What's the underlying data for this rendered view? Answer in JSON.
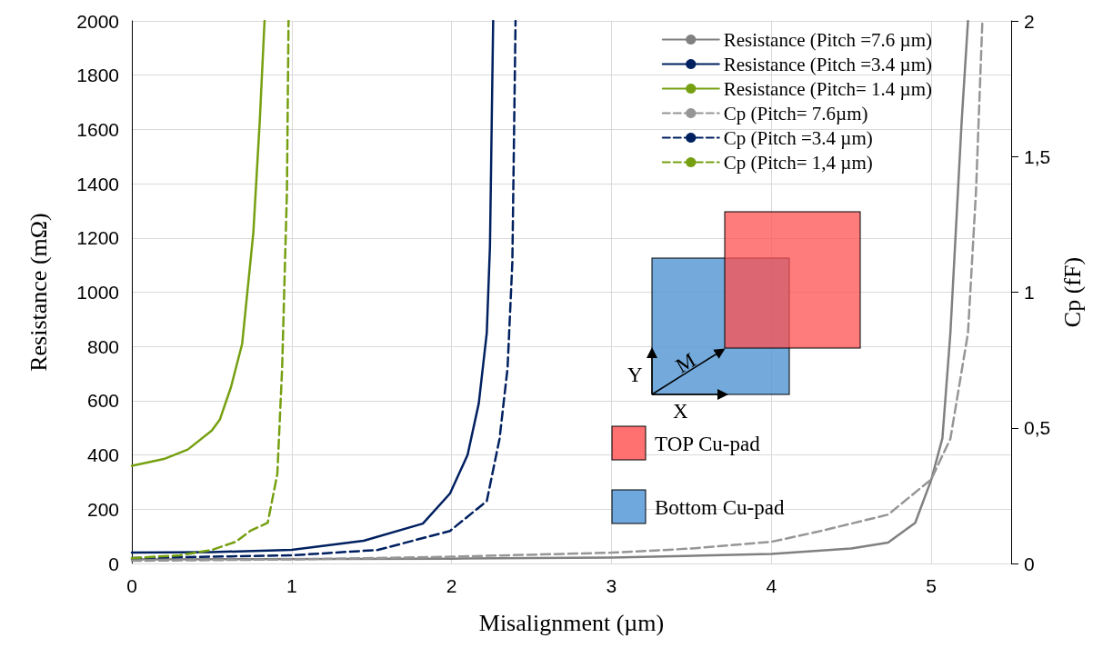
{
  "chart_data": {
    "type": "line",
    "xlabel": "Misalignment (µm)",
    "ylabel": "Resistance (mΩ)",
    "y2label": "Cp (fF)",
    "xlim": [
      0,
      5.5
    ],
    "xticks": [
      0,
      1,
      2,
      3,
      4,
      5
    ],
    "ylim": [
      0,
      2000
    ],
    "yticks": [
      0,
      200,
      400,
      600,
      800,
      1000,
      1200,
      1400,
      1600,
      1800,
      2000
    ],
    "y2lim": [
      0,
      2
    ],
    "y2ticks": [
      0,
      {
        "value": 0.5,
        "label": "0,5"
      },
      1,
      {
        "value": 1.5,
        "label": "1,5"
      },
      2
    ],
    "grid": true,
    "legend": "top right",
    "marker": "none",
    "annotations": [
      "X",
      "Y",
      "M",
      "TOP Cu-pad",
      "Bottom Cu-pad"
    ],
    "series": [
      {
        "name": "Resistance (Pitch =7.6 µm)",
        "color": "#808080",
        "line_style": "solid",
        "x": [
          0,
          2,
          3,
          4,
          4.5,
          4.73,
          4.9,
          5,
          5.07,
          5.12,
          5.19,
          5.23
        ],
        "values": [
          15,
          18,
          22,
          35,
          55,
          77,
          150,
          308,
          462,
          850,
          1625,
          2000
        ]
      },
      {
        "name": "Resistance (Pitch =3.4 µm)",
        "color": "#002060",
        "line_style": "solid",
        "x": [
          0,
          0.5,
          1,
          1.45,
          1.82,
          1.99,
          2.1,
          2.17,
          2.22,
          2.24,
          2.26
        ],
        "values": [
          40,
          42,
          50,
          84,
          147,
          258,
          400,
          590,
          850,
          1170,
          2000
        ]
      },
      {
        "name": "Resistance (Pitch= 1.4 µm)",
        "color": "#76a011",
        "line_style": "solid",
        "x": [
          0,
          0.2,
          0.35,
          0.5,
          0.55,
          0.62,
          0.69,
          0.76,
          0.8,
          0.83
        ],
        "values": [
          360,
          385,
          420,
          490,
          530,
          650,
          810,
          1220,
          1630,
          2000
        ]
      },
      {
        "name": "Cp (Pitch= 7.6µm)",
        "color": "#969696",
        "line_style": "dashed",
        "axis": "y2",
        "x": [
          0,
          1,
          2,
          3,
          3.5,
          4,
          4.29,
          4.73,
          5,
          5.12,
          5.23,
          5.28,
          5.32
        ],
        "values": [
          0.01,
          0.015,
          0.025,
          0.04,
          0.055,
          0.08,
          0.117,
          0.18,
          0.31,
          0.46,
          0.85,
          1.37,
          2
        ]
      },
      {
        "name": "Cp (Pitch =3.4 µm)",
        "color": "#002060",
        "line_style": "dashed",
        "axis": "y2",
        "x": [
          0,
          1,
          1.54,
          1.99,
          2.22,
          2.3,
          2.35,
          2.38,
          2.4
        ],
        "values": [
          0.02,
          0.03,
          0.05,
          0.12,
          0.23,
          0.46,
          0.72,
          1.11,
          2
        ]
      },
      {
        "name": "Cp (Pitch= 1,4 µm)",
        "color": "#76a011",
        "line_style": "dashed",
        "axis": "y2",
        "x": [
          0,
          0.3,
          0.5,
          0.65,
          0.74,
          0.85,
          0.91,
          0.94,
          0.97,
          0.98
        ],
        "values": [
          0.02,
          0.03,
          0.05,
          0.08,
          0.12,
          0.15,
          0.33,
          0.72,
          1.37,
          2
        ]
      }
    ]
  }
}
